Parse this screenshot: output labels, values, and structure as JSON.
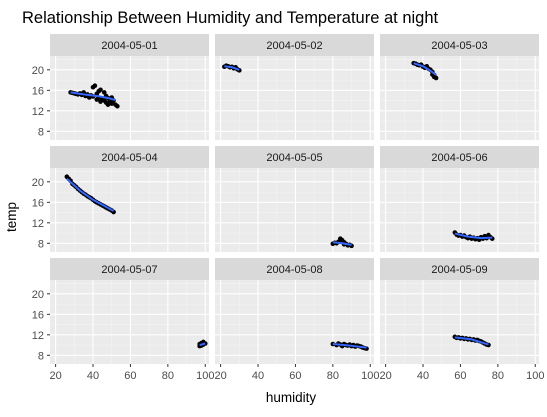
{
  "chart_data": {
    "type": "scatter",
    "facet_layout": "3x3",
    "title": "Relationship Between Humidity and Temperature at night",
    "xlabel": "humidity",
    "ylabel": "temp",
    "xlim": [
      17,
      102
    ],
    "ylim": [
      6.3,
      22.7
    ],
    "xticks": [
      20,
      40,
      60,
      80,
      100
    ],
    "yticks": [
      8,
      12,
      16,
      20
    ],
    "grid": true,
    "colors": {
      "panel_bg": "#ebebeb",
      "strip_bg": "#d9d9d9",
      "grid_major": "#ffffff",
      "point": "#000000",
      "smooth_line": "#3366ff",
      "axis_text": "#4d4d4d"
    },
    "facets": [
      {
        "label": "2004-05-01",
        "points": [
          [
            28,
            15.6
          ],
          [
            29,
            15.5
          ],
          [
            30,
            15.4
          ],
          [
            31,
            15.3
          ],
          [
            32,
            15.2
          ],
          [
            33,
            15.4
          ],
          [
            34,
            15.1
          ],
          [
            35,
            15.6
          ],
          [
            36,
            14.9
          ],
          [
            37,
            15.2
          ],
          [
            38,
            14.6
          ],
          [
            39,
            15.0
          ],
          [
            40,
            14.8
          ],
          [
            40,
            16.6
          ],
          [
            41,
            16.9
          ],
          [
            42,
            15.3
          ],
          [
            42,
            14.2
          ],
          [
            43,
            14.6
          ],
          [
            43,
            15.8
          ],
          [
            44,
            13.8
          ],
          [
            44,
            16.1
          ],
          [
            45,
            14.3
          ],
          [
            46,
            14.0
          ],
          [
            46,
            15.6
          ],
          [
            47,
            13.6
          ],
          [
            47,
            14.9
          ],
          [
            48,
            14.5
          ],
          [
            48,
            13.2
          ],
          [
            49,
            13.9
          ],
          [
            50,
            13.4
          ],
          [
            50,
            14.6
          ],
          [
            51,
            14.0
          ],
          [
            52,
            13.2
          ],
          [
            53,
            12.9
          ]
        ],
        "smooth": [
          [
            28,
            15.6
          ],
          [
            35,
            15.2
          ],
          [
            42,
            14.9
          ],
          [
            48,
            14.5
          ],
          [
            52,
            14.1
          ]
        ]
      },
      {
        "label": "2004-05-02",
        "points": [
          [
            22,
            20.6
          ],
          [
            23,
            20.8
          ],
          [
            24,
            20.7
          ],
          [
            25,
            20.5
          ],
          [
            26,
            20.6
          ],
          [
            27,
            20.3
          ],
          [
            28,
            20.5
          ],
          [
            29,
            20.1
          ],
          [
            30,
            19.9
          ]
        ],
        "smooth": [
          [
            22,
            20.7
          ],
          [
            26,
            20.5
          ],
          [
            30,
            20.0
          ]
        ]
      },
      {
        "label": "2004-05-03",
        "points": [
          [
            35,
            21.3
          ],
          [
            36,
            21.2
          ],
          [
            37,
            21.0
          ],
          [
            38,
            20.9
          ],
          [
            39,
            21.0
          ],
          [
            40,
            20.6
          ],
          [
            41,
            20.4
          ],
          [
            42,
            20.7
          ],
          [
            43,
            20.2
          ],
          [
            44,
            20.0
          ],
          [
            45,
            19.6
          ],
          [
            45,
            19.1
          ],
          [
            46,
            18.6
          ],
          [
            47,
            18.4
          ],
          [
            46,
            19.0
          ]
        ],
        "smooth": [
          [
            35,
            21.3
          ],
          [
            40,
            20.7
          ],
          [
            44,
            19.8
          ],
          [
            47,
            19.0
          ]
        ]
      },
      {
        "label": "2004-05-04",
        "points": [
          [
            26,
            21.0
          ],
          [
            27,
            20.6
          ],
          [
            28,
            20.2
          ],
          [
            29,
            19.6
          ],
          [
            30,
            19.3
          ],
          [
            31,
            19.0
          ],
          [
            32,
            18.6
          ],
          [
            33,
            18.3
          ],
          [
            34,
            18.0
          ],
          [
            35,
            17.7
          ],
          [
            36,
            17.5
          ],
          [
            37,
            17.2
          ],
          [
            38,
            17.0
          ],
          [
            39,
            16.8
          ],
          [
            40,
            16.5
          ],
          [
            41,
            16.2
          ],
          [
            42,
            16.0
          ],
          [
            43,
            15.8
          ],
          [
            44,
            15.6
          ],
          [
            45,
            15.4
          ],
          [
            46,
            15.2
          ],
          [
            47,
            15.0
          ],
          [
            48,
            14.8
          ],
          [
            49,
            14.6
          ],
          [
            50,
            14.4
          ],
          [
            51,
            14.1
          ]
        ],
        "smooth": [
          [
            26,
            20.6
          ],
          [
            33,
            18.3
          ],
          [
            40,
            16.5
          ],
          [
            46,
            15.3
          ],
          [
            51,
            14.3
          ]
        ]
      },
      {
        "label": "2004-05-05",
        "points": [
          [
            80,
            7.9
          ],
          [
            81,
            8.1
          ],
          [
            82,
            8.0
          ],
          [
            83,
            8.3
          ],
          [
            84,
            8.9
          ],
          [
            85,
            8.6
          ],
          [
            86,
            8.2
          ],
          [
            86,
            7.8
          ],
          [
            87,
            7.9
          ],
          [
            88,
            7.6
          ],
          [
            89,
            7.7
          ],
          [
            90,
            7.5
          ]
        ],
        "smooth": [
          [
            80,
            8.2
          ],
          [
            85,
            8.0
          ],
          [
            90,
            7.7
          ]
        ]
      },
      {
        "label": "2004-05-06",
        "points": [
          [
            57,
            10.1
          ],
          [
            58,
            9.7
          ],
          [
            59,
            9.5
          ],
          [
            60,
            9.6
          ],
          [
            61,
            9.3
          ],
          [
            62,
            9.5
          ],
          [
            63,
            9.2
          ],
          [
            64,
            9.0
          ],
          [
            65,
            9.3
          ],
          [
            66,
            8.9
          ],
          [
            67,
            9.1
          ],
          [
            68,
            8.8
          ],
          [
            69,
            9.0
          ],
          [
            70,
            8.7
          ],
          [
            71,
            9.2
          ],
          [
            72,
            8.9
          ],
          [
            73,
            9.4
          ],
          [
            74,
            9.0
          ],
          [
            75,
            9.6
          ],
          [
            76,
            9.2
          ],
          [
            77,
            8.9
          ]
        ],
        "smooth": [
          [
            57,
            9.9
          ],
          [
            64,
            9.3
          ],
          [
            71,
            9.0
          ],
          [
            77,
            9.1
          ]
        ]
      },
      {
        "label": "2004-05-07",
        "points": [
          [
            97,
            9.8
          ],
          [
            97,
            10.2
          ],
          [
            98,
            10.4
          ],
          [
            98,
            9.9
          ],
          [
            99,
            10.6
          ],
          [
            99,
            10.1
          ],
          [
            100,
            10.3
          ]
        ],
        "smooth": [
          [
            97,
            10.0
          ],
          [
            100,
            10.3
          ]
        ]
      },
      {
        "label": "2004-05-08",
        "points": [
          [
            80,
            10.2
          ],
          [
            82,
            10.0
          ],
          [
            83,
            10.3
          ],
          [
            84,
            10.1
          ],
          [
            85,
            9.8
          ],
          [
            86,
            10.2
          ],
          [
            87,
            10.0
          ],
          [
            88,
            9.9
          ],
          [
            89,
            10.1
          ],
          [
            90,
            9.8
          ],
          [
            91,
            10.0
          ],
          [
            92,
            9.7
          ],
          [
            93,
            9.9
          ],
          [
            94,
            9.8
          ],
          [
            95,
            9.7
          ],
          [
            96,
            9.5
          ],
          [
            97,
            9.4
          ],
          [
            98,
            9.3
          ]
        ],
        "smooth": [
          [
            80,
            10.2
          ],
          [
            89,
            9.9
          ],
          [
            98,
            9.5
          ]
        ]
      },
      {
        "label": "2004-05-09",
        "points": [
          [
            57,
            11.6
          ],
          [
            58,
            11.4
          ],
          [
            59,
            11.5
          ],
          [
            60,
            11.3
          ],
          [
            61,
            11.4
          ],
          [
            62,
            11.2
          ],
          [
            63,
            11.3
          ],
          [
            64,
            11.1
          ],
          [
            65,
            11.2
          ],
          [
            66,
            11.0
          ],
          [
            67,
            11.1
          ],
          [
            68,
            10.9
          ],
          [
            69,
            11.0
          ],
          [
            70,
            10.8
          ],
          [
            71,
            10.7
          ],
          [
            72,
            10.5
          ],
          [
            73,
            10.3
          ],
          [
            74,
            10.1
          ],
          [
            75,
            10.0
          ]
        ],
        "smooth": [
          [
            57,
            11.5
          ],
          [
            66,
            11.1
          ],
          [
            75,
            10.1
          ]
        ]
      }
    ]
  }
}
